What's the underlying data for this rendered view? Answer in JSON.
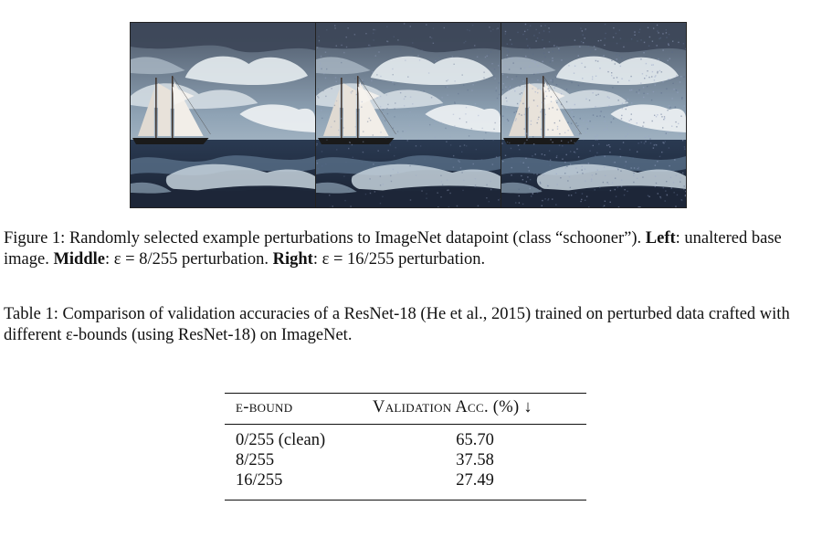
{
  "figure": {
    "panels": [
      {
        "name": "left",
        "noise": 0
      },
      {
        "name": "middle",
        "noise": 0.35
      },
      {
        "name": "right",
        "noise": 0.7
      }
    ],
    "caption": {
      "prefix": "Figure 1: Randomly selected example perturbations to ImageNet datapoint (class “schooner”). ",
      "left_label": "Left",
      "left_text": ": unaltered base image. ",
      "middle_label": "Middle",
      "middle_text": ": ε = 8/255 perturbation. ",
      "right_label": "Right",
      "right_text": ": ε = 16/255 perturbation."
    }
  },
  "table": {
    "caption": "Table 1: Comparison of validation accuracies of a ResNet-18 (He et al., 2015) trained on perturbed data crafted with different ε-bounds (using ResNet-18) on ImageNet.",
    "headers": [
      "ε-bound",
      "Validation Acc. (%) ↓"
    ],
    "rows": [
      {
        "bound": "0/255 (clean)",
        "acc": "65.70"
      },
      {
        "bound": "8/255",
        "acc": "37.58"
      },
      {
        "bound": "16/255",
        "acc": "27.49"
      }
    ]
  }
}
